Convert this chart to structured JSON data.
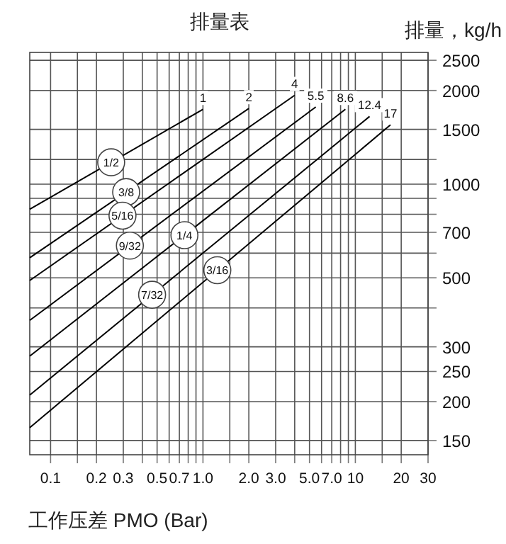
{
  "chart_data": {
    "type": "line",
    "title": "排量表",
    "ylabel": "排量，kg/h",
    "xlabel": "工作压差 PMO (Bar)",
    "log": "xy",
    "grid": true,
    "xlim": [
      0.073,
      30
    ],
    "ylim": [
      135,
      2650
    ],
    "xticks": [
      0.1,
      {
        "value": 0.15,
        "label": null
      },
      0.2,
      0.3,
      {
        "value": 0.4,
        "label": null
      },
      0.5,
      {
        "value": 0.6,
        "label": null
      },
      0.7,
      {
        "value": 0.8,
        "label": null
      },
      {
        "value": 0.9,
        "label": null
      },
      {
        "value": 1,
        "label": "1.0"
      },
      {
        "value": 1.5,
        "label": null
      },
      {
        "value": 2,
        "label": "2.0"
      },
      {
        "value": 3,
        "label": "3.0"
      },
      {
        "value": 4,
        "label": null
      },
      {
        "value": 5,
        "label": "5.0"
      },
      {
        "value": 6,
        "label": null
      },
      {
        "value": 7,
        "label": "7.0"
      },
      {
        "value": 8,
        "label": null
      },
      {
        "value": 9,
        "label": null
      },
      10,
      {
        "value": 15,
        "label": null
      },
      20,
      30
    ],
    "yticks": [
      150,
      200,
      250,
      300,
      {
        "value": 400,
        "label": null
      },
      500,
      {
        "value": 600,
        "label": null
      },
      700,
      {
        "value": 800,
        "label": null
      },
      {
        "value": 900,
        "label": null
      },
      1000,
      {
        "value": 1200,
        "label": null
      },
      1500,
      2000,
      2500
    ],
    "series": [
      {
        "name": "1/2",
        "color": "#000000",
        "x": [
          0.073,
          1
        ],
        "values": [
          830,
          1740
        ]
      },
      {
        "name": "3/8",
        "color": "#000000",
        "x": [
          0.073,
          2
        ],
        "values": [
          580,
          1750
        ]
      },
      {
        "name": "5/16",
        "color": "#000000",
        "x": [
          0.073,
          4
        ],
        "values": [
          490,
          1930
        ]
      },
      {
        "name": "9/32",
        "color": "#000000",
        "x": [
          0.073,
          5.5
        ],
        "values": [
          365,
          1770
        ]
      },
      {
        "name": "1/4",
        "color": "#000000",
        "x": [
          0.073,
          8.6
        ],
        "values": [
          280,
          1740
        ]
      },
      {
        "name": "7/32",
        "color": "#000000",
        "x": [
          0.073,
          12.4
        ],
        "values": [
          210,
          1650
        ]
      },
      {
        "name": "3/16",
        "color": "#000000",
        "x": [
          0.073,
          17
        ],
        "values": [
          165,
          1550
        ]
      }
    ],
    "annotations": [
      {
        "text": "1",
        "x": 1,
        "y": 1740
      },
      {
        "text": "2",
        "x": 2,
        "y": 1750
      },
      {
        "text": "4",
        "x": 4,
        "y": 1930
      },
      {
        "text": "5.5",
        "x": 5.5,
        "y": 1770
      },
      {
        "text": "8.6",
        "x": 8.6,
        "y": 1740
      },
      {
        "text": "12.4",
        "x": 12.4,
        "y": 1650
      },
      {
        "text": "17",
        "x": 17,
        "y": 1550
      }
    ]
  }
}
